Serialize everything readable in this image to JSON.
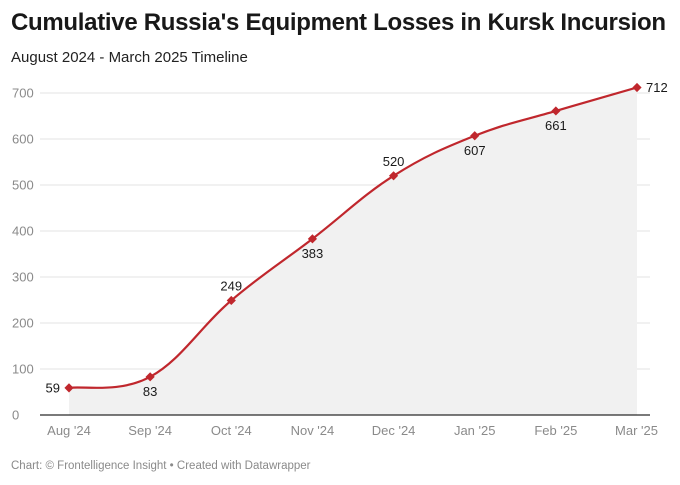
{
  "header": {
    "title": "Cumulative Russia's Equipment Losses in Kursk Incursion",
    "subtitle": "August 2024 - March 2025 Timeline"
  },
  "footer": {
    "credit": "Chart: © Frontelligence Insight • Created with Datawrapper"
  },
  "colors": {
    "line": "#c0272d",
    "marker": "#c0272d",
    "area": "#f1f1f1",
    "grid": "#e3e3e3",
    "axis": "#2b2b2b"
  },
  "chart_data": {
    "type": "area",
    "title": "Cumulative Russia's Equipment Losses in Kursk Incursion",
    "subtitle": "August 2024 - March 2025 Timeline",
    "categories": [
      "Aug '24",
      "Sep '24",
      "Oct '24",
      "Nov '24",
      "Dec '24",
      "Jan '25",
      "Feb '25",
      "Mar '25"
    ],
    "values": [
      59,
      83,
      249,
      383,
      520,
      607,
      661,
      712
    ],
    "ylim": [
      0,
      700
    ],
    "yticks": [
      "0",
      "100",
      "200",
      "300",
      "400",
      "500",
      "600",
      "700"
    ],
    "label_placement": [
      "left",
      "below",
      "above",
      "below",
      "above",
      "below",
      "below",
      "right"
    ],
    "xlabel": "",
    "ylabel": "",
    "grid": true,
    "marker": "diamond"
  }
}
